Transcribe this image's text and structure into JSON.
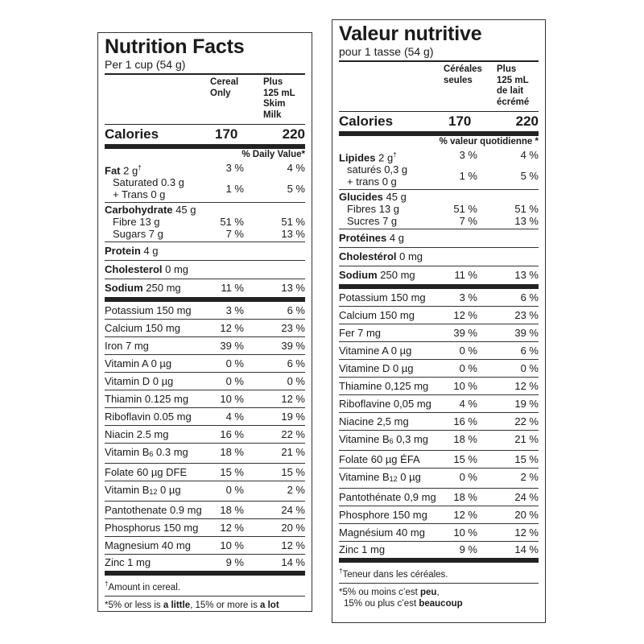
{
  "english": {
    "title": "Nutrition Facts",
    "serving": "Per 1 cup (54 g)",
    "col1_line1": "Cereal",
    "col1_line2": "Only",
    "col2_line1": "Plus",
    "col2_line2": "125 mL",
    "col2_line3": "Skim",
    "col2_line4": "Milk",
    "calories_label": "Calories",
    "calories_cereal": "170",
    "calories_milk": "220",
    "dv_header": "% Daily Value*",
    "fat": {
      "label": "Fat",
      "amount": "2 g",
      "mark": "†",
      "p1": "3 %",
      "p2": "4 %"
    },
    "sat": {
      "label": "Saturated 0.3 g",
      "label2": "+ Trans 0 g",
      "p1": "1 %",
      "p2": "5 %"
    },
    "carb": {
      "label": "Carbohydrate",
      "amount": "45 g"
    },
    "fibre": {
      "label": "Fibre 13 g",
      "p1": "51 %",
      "p2": "51 %"
    },
    "sugars": {
      "label": "Sugars 7 g",
      "p1": "7 %",
      "p2": "13 %"
    },
    "protein": {
      "label": "Protein",
      "amount": "4 g"
    },
    "cholesterol": {
      "label": "Cholesterol",
      "amount": "0 mg"
    },
    "sodium": {
      "label": "Sodium",
      "amount": "250 mg",
      "p1": "11 %",
      "p2": "13 %"
    },
    "vitamins": [
      {
        "label": "Potassium 150 mg",
        "p1": "3 %",
        "p2": "6 %"
      },
      {
        "label": "Calcium 150 mg",
        "p1": "12 %",
        "p2": "23 %"
      },
      {
        "label": "Iron 7 mg",
        "p1": "39 %",
        "p2": "39 %"
      },
      {
        "label": "Vitamin A 0 µg",
        "p1": "0 %",
        "p2": "6 %"
      },
      {
        "label": "Vitamin D 0 µg",
        "p1": "0 %",
        "p2": "0 %"
      },
      {
        "label": "Thiamin 0.125 mg",
        "p1": "10 %",
        "p2": "12 %"
      },
      {
        "label": "Riboflavin 0.05 mg",
        "p1": "4 %",
        "p2": "19 %"
      },
      {
        "label": "Niacin 2.5 mg",
        "p1": "16 %",
        "p2": "22 %"
      },
      {
        "pre": "Vitamin B",
        "sub": "6",
        "post": " 0.3 mg",
        "p1": "18 %",
        "p2": "21 %"
      },
      {
        "label": "Folate 60 µg DFE",
        "p1": "15 %",
        "p2": "15 %"
      },
      {
        "pre": "Vitamin B",
        "sub": "12",
        "post": " 0 µg",
        "p1": "0 %",
        "p2": "2 %"
      },
      {
        "label": "Pantothenate 0.9 mg",
        "p1": "18 %",
        "p2": "24 %"
      },
      {
        "label": "Phosphorus 150 mg",
        "p1": "12 %",
        "p2": "20 %"
      },
      {
        "label": "Magnesium 40 mg",
        "p1": "10 %",
        "p2": "12 %"
      },
      {
        "label": "Zinc 1 mg",
        "p1": "9 %",
        "p2": "14 %"
      }
    ],
    "footnote1_mark": "†",
    "footnote1": "Amount in cereal.",
    "footnote2_a": "*5% or less is ",
    "footnote2_b": "a little",
    "footnote2_c": ", 15% or more is ",
    "footnote2_d": "a lot"
  },
  "french": {
    "title": "Valeur nutritive",
    "serving": "pour 1 tasse (54 g)",
    "col1_line1": "Céréales",
    "col1_line2": "seules",
    "col2_line1": "Plus",
    "col2_line2": "125 mL",
    "col2_line3": "de lait",
    "col2_line4": "écrémé",
    "calories_label": "Calories",
    "calories_cereal": "170",
    "calories_milk": "220",
    "dv_header": "% valeur quotidienne *",
    "fat": {
      "label": "Lipides",
      "amount": "2 g",
      "mark": "†",
      "p1": "3 %",
      "p2": "4 %"
    },
    "sat": {
      "label": "saturés 0,3 g",
      "label2": "+ trans 0 g",
      "p1": "1 %",
      "p2": "5 %"
    },
    "carb": {
      "label": "Glucides",
      "amount": "45 g"
    },
    "fibre": {
      "label": "Fibres 13 g",
      "p1": "51 %",
      "p2": "51 %"
    },
    "sugars": {
      "label": "Sucres 7 g",
      "p1": "7 %",
      "p2": "13 %"
    },
    "protein": {
      "label": "Protéines",
      "amount": "4 g"
    },
    "cholesterol": {
      "label": "Cholestérol",
      "amount": "0 mg"
    },
    "sodium": {
      "label": "Sodium",
      "amount": "250 mg",
      "p1": "11 %",
      "p2": "13 %"
    },
    "vitamins": [
      {
        "label": "Potassium 150 mg",
        "p1": "3 %",
        "p2": "6 %"
      },
      {
        "label": "Calcium 150 mg",
        "p1": "12 %",
        "p2": "23 %"
      },
      {
        "label": "Fer 7 mg",
        "p1": "39 %",
        "p2": "39 %"
      },
      {
        "label": "Vitamine A 0 µg",
        "p1": "0 %",
        "p2": "6 %"
      },
      {
        "label": "Vitamine D 0 µg",
        "p1": "0 %",
        "p2": "0 %"
      },
      {
        "label": "Thiamine 0,125 mg",
        "p1": "10 %",
        "p2": "12 %"
      },
      {
        "label": "Riboflavine 0,05 mg",
        "p1": "4 %",
        "p2": "19 %"
      },
      {
        "label": "Niacine 2,5 mg",
        "p1": "16 %",
        "p2": "22 %"
      },
      {
        "pre": "Vitamine B",
        "sub": "6",
        "post": " 0,3 mg",
        "p1": "18 %",
        "p2": "21 %"
      },
      {
        "label": "Folate 60 µg ÉFA",
        "p1": "15 %",
        "p2": "15 %"
      },
      {
        "pre": "Vitamine B",
        "sub": "12",
        "post": " 0 µg",
        "p1": "0 %",
        "p2": "2 %"
      },
      {
        "label": "Pantothénate 0,9 mg",
        "p1": "18 %",
        "p2": "24 %"
      },
      {
        "label": "Phosphore 150 mg",
        "p1": "12 %",
        "p2": "20 %"
      },
      {
        "label": "Magnésium 40 mg",
        "p1": "10 %",
        "p2": "12 %"
      },
      {
        "label": "Zinc 1 mg",
        "p1": "9 %",
        "p2": "14 %"
      }
    ],
    "footnote1_mark": "†",
    "footnote1": "Teneur dans les céréales.",
    "footnote2_a": "*5% ou moins c’est ",
    "footnote2_b": "peu",
    "footnote2_c": ",",
    "footnote2_line2a": " 15% ou plus c’est ",
    "footnote2_d": "beaucoup"
  }
}
